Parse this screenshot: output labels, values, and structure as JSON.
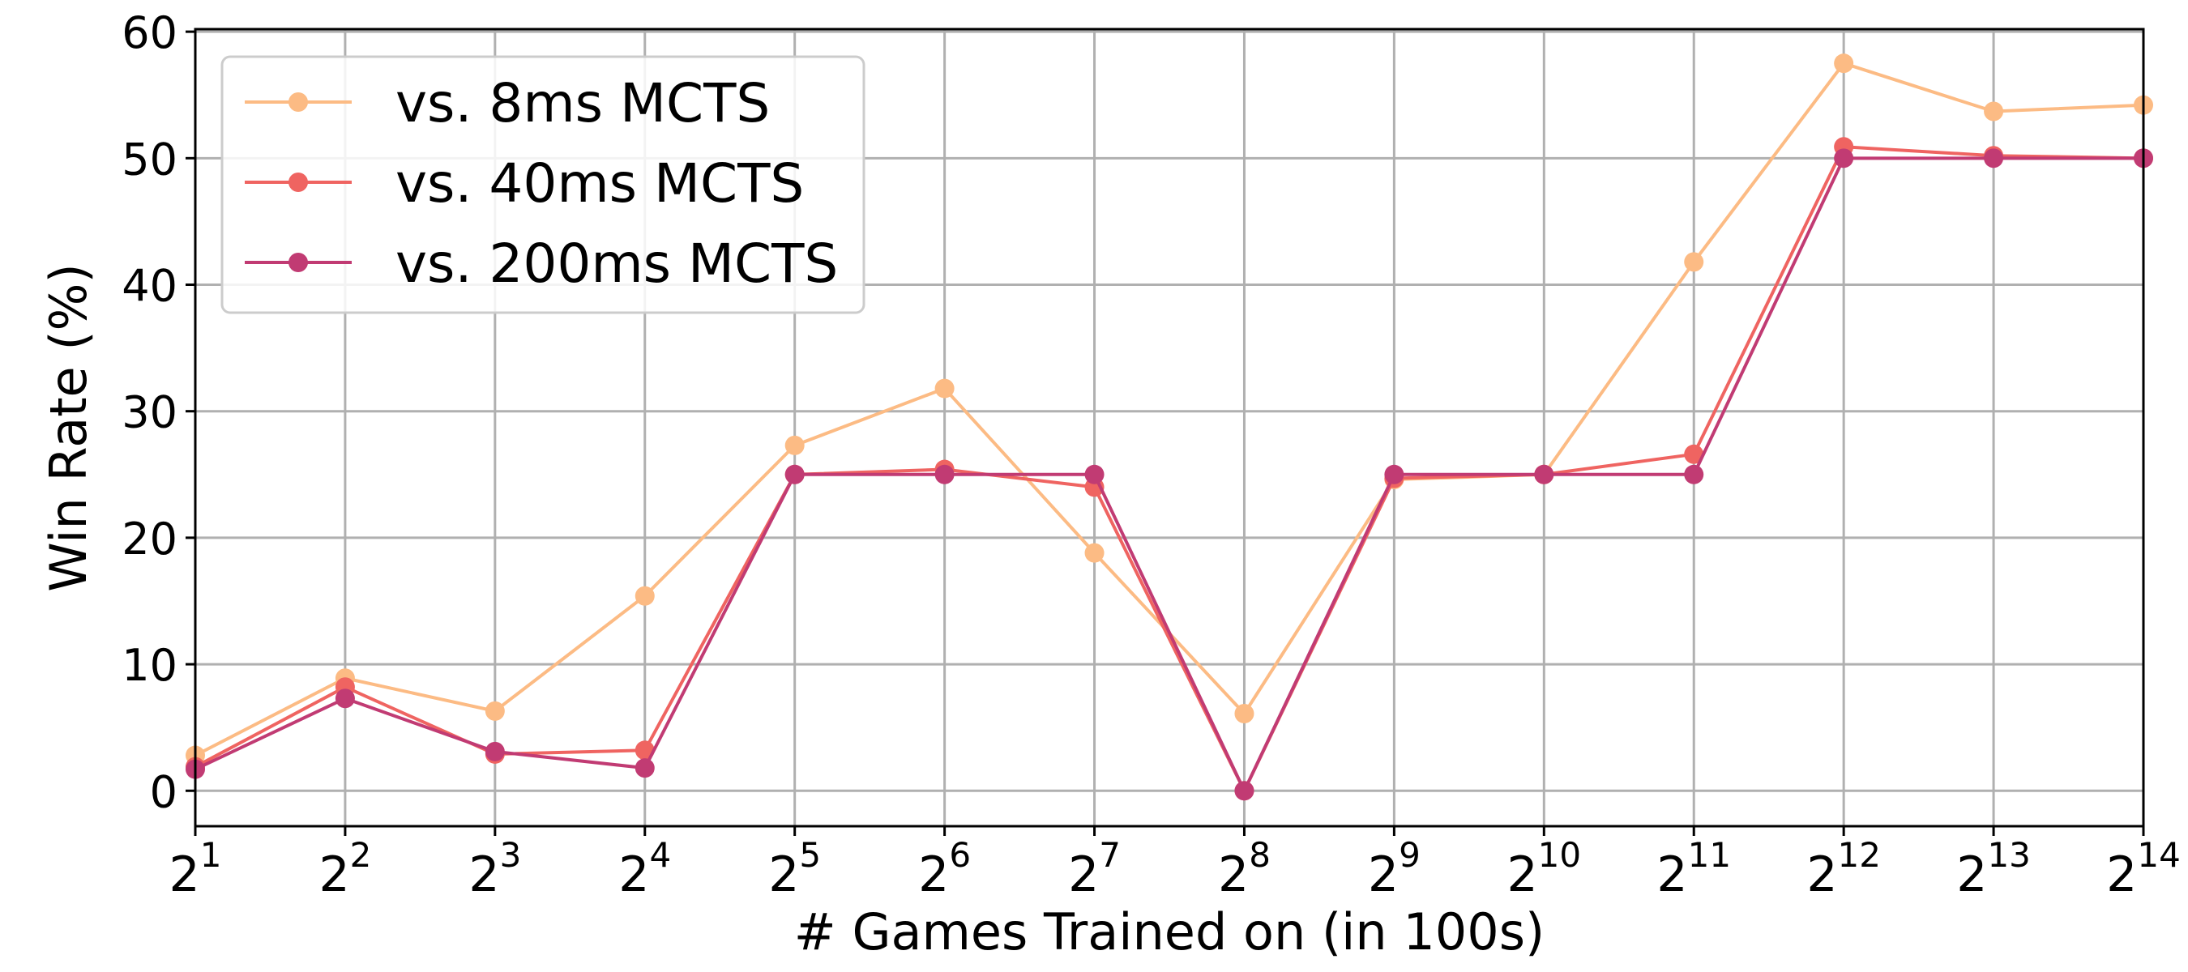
{
  "chart_data": {
    "type": "line",
    "title": "",
    "xlabel": "# Games Trained on (in 100s)",
    "ylabel": "Win Rate (%)",
    "x_scale": "log2",
    "x_base": "2",
    "x": [
      1,
      2,
      3,
      4,
      5,
      6,
      7,
      8,
      9,
      10,
      11,
      12,
      13,
      14
    ],
    "x_tick_labels": [
      "2^1",
      "2^2",
      "2^3",
      "2^4",
      "2^5",
      "2^6",
      "2^7",
      "2^8",
      "2^9",
      "2^10",
      "2^11",
      "2^12",
      "2^13",
      "2^14"
    ],
    "x_tick_exponents": [
      "1",
      "2",
      "3",
      "4",
      "5",
      "6",
      "7",
      "8",
      "9",
      "10",
      "11",
      "12",
      "13",
      "14"
    ],
    "xlim": [
      1,
      14
    ],
    "ylim": [
      -2.8,
      60.2
    ],
    "y_ticks": [
      0,
      10,
      20,
      30,
      40,
      50,
      60
    ],
    "y_tick_labels": [
      "0",
      "10",
      "20",
      "30",
      "40",
      "50",
      "60"
    ],
    "grid": true,
    "legend_position": "top-left",
    "series": [
      {
        "name": "vs. 8ms MCTS",
        "color": "#fcbb84",
        "values": [
          2.8,
          8.9,
          6.3,
          15.4,
          27.3,
          31.8,
          18.8,
          6.1,
          24.6,
          25.0,
          41.8,
          57.5,
          53.7,
          54.2
        ]
      },
      {
        "name": "vs. 40ms MCTS",
        "color": "#ef6461",
        "values": [
          1.9,
          8.2,
          2.9,
          3.2,
          25.0,
          25.4,
          24.0,
          0.0,
          24.7,
          25.0,
          26.6,
          50.9,
          50.2,
          50.0
        ]
      },
      {
        "name": "vs. 200ms MCTS",
        "color": "#c13b73",
        "values": [
          1.7,
          7.3,
          3.1,
          1.8,
          25.0,
          25.0,
          25.0,
          0.0,
          25.0,
          25.0,
          25.0,
          50.0,
          50.0,
          50.0
        ]
      }
    ]
  }
}
